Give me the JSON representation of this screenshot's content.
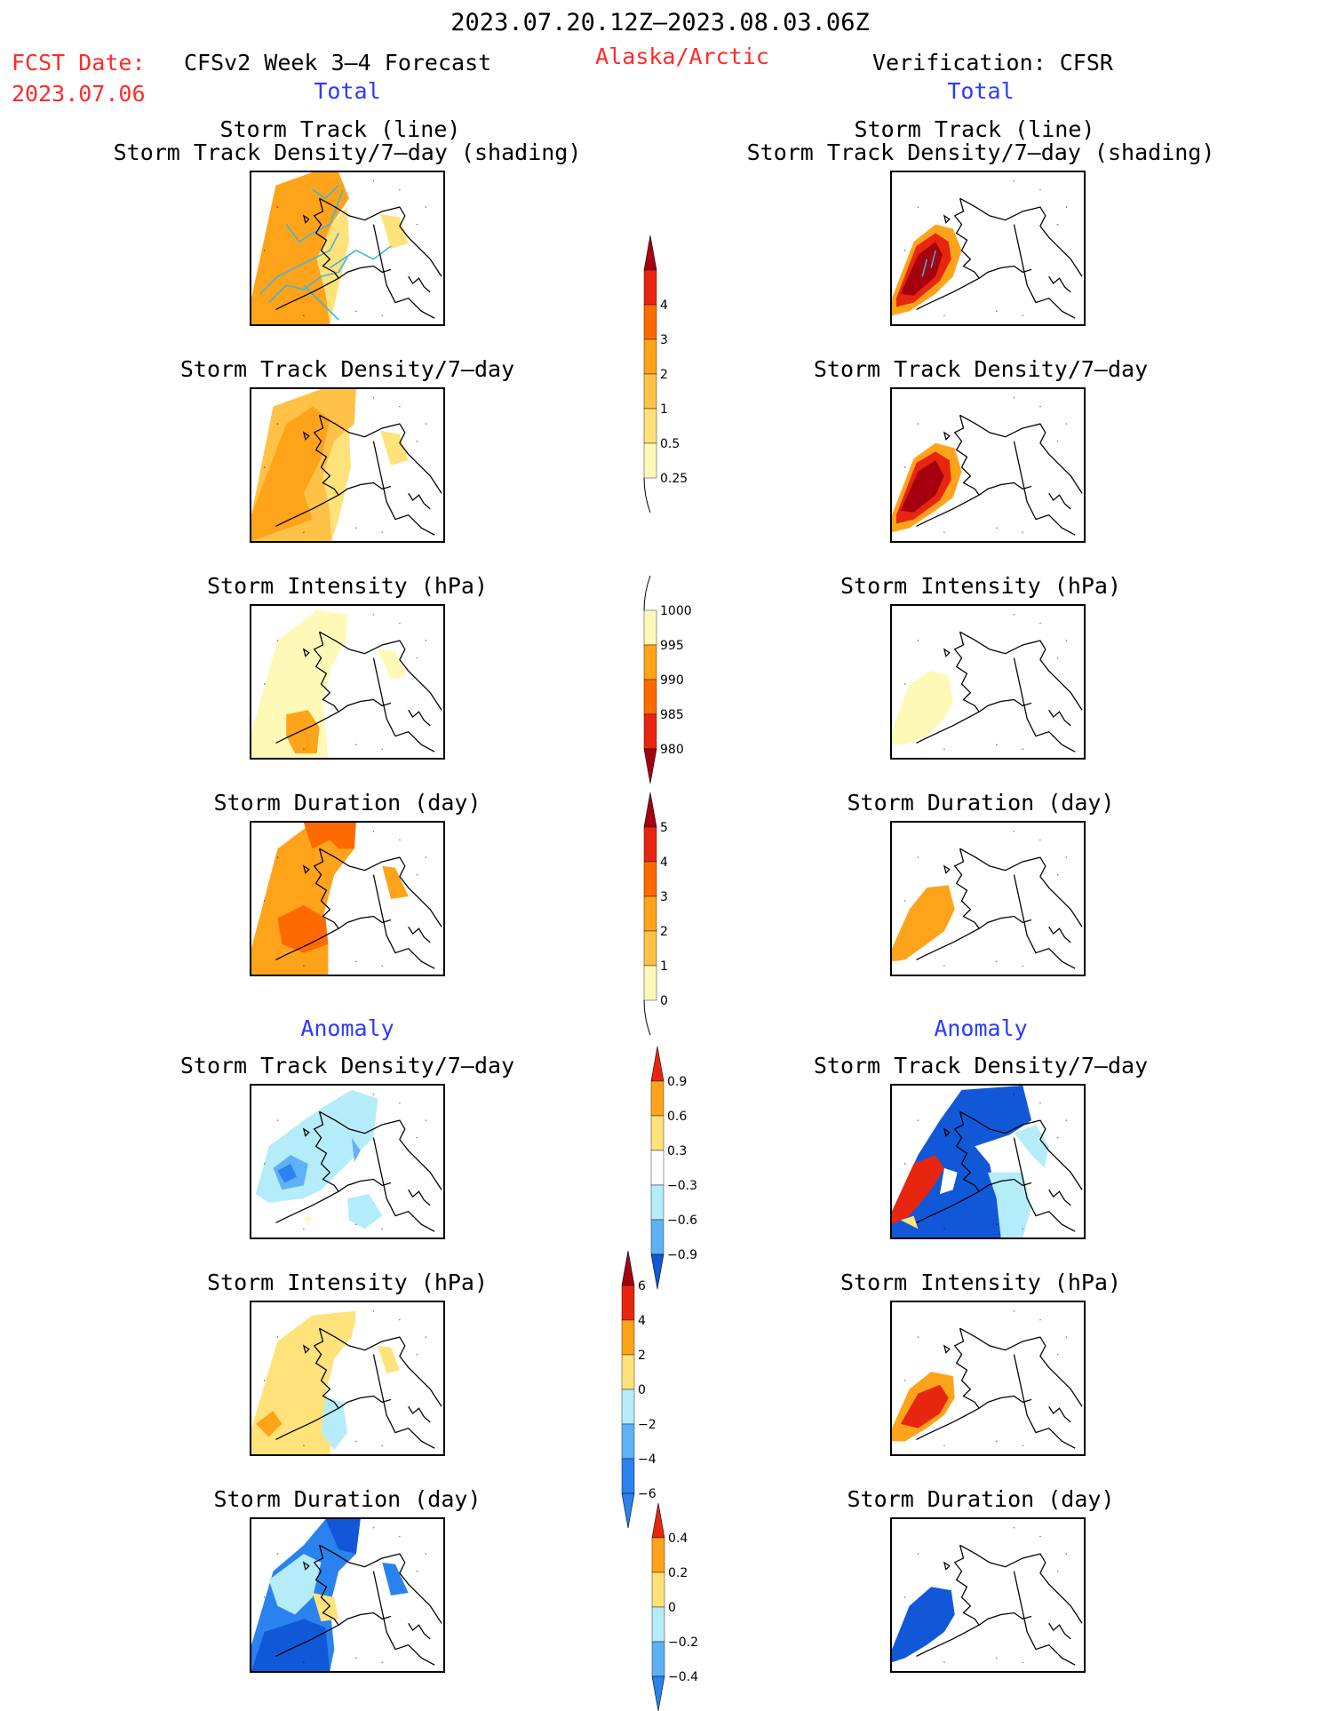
{
  "header": {
    "period": "2023.07.20.12Z–2023.08.03.06Z",
    "fcst_label": "FCST Date:",
    "fcst_date": "2023.07.06",
    "left_title": "CFSv2 Week 3–4 Forecast",
    "region": "Alaska/Arctic",
    "right_title": "Verification: CFSR",
    "left_subtitle": "Total",
    "right_subtitle": "Total"
  },
  "sections": {
    "anomaly_left": "Anomaly",
    "anomaly_right": "Anomaly"
  },
  "panel_titles": {
    "track_line": "Storm Track (line)",
    "track_shading": "Storm Track Density/7–day (shading)",
    "density": "Storm Track Density/7–day",
    "intensity": "Storm Intensity (hPa)",
    "duration": "Storm Duration (day)"
  },
  "colors": {
    "pale_yellow": "#fff9b8",
    "yellow": "#ffe27a",
    "light_orange": "#ffc247",
    "orange": "#ffa31a",
    "dark_orange": "#ff6a00",
    "red": "#e8260f",
    "dark_red": "#a50010",
    "light_blue": "#b5ecfa",
    "mid_blue": "#5fb1f5",
    "blue": "#2a82ee",
    "dark_blue": "#1158d9",
    "track_line": "#3fb4e0"
  },
  "colorbars": {
    "density_total": [
      "0.25",
      "0.5",
      "1",
      "2",
      "3",
      "4"
    ],
    "intensity_total": [
      "1000",
      "995",
      "990",
      "985",
      "980"
    ],
    "duration_total": [
      "0",
      "1",
      "2",
      "3",
      "4",
      "5"
    ],
    "density_anom": [
      "0.9",
      "0.6",
      "0.3",
      "−0.3",
      "−0.6",
      "−0.9"
    ],
    "intensity_anom": [
      "6",
      "4",
      "2",
      "0",
      "−2",
      "−4",
      "−6"
    ],
    "duration_anom": [
      "0.4",
      "0.2",
      "0",
      "−0.2",
      "−0.4"
    ]
  }
}
